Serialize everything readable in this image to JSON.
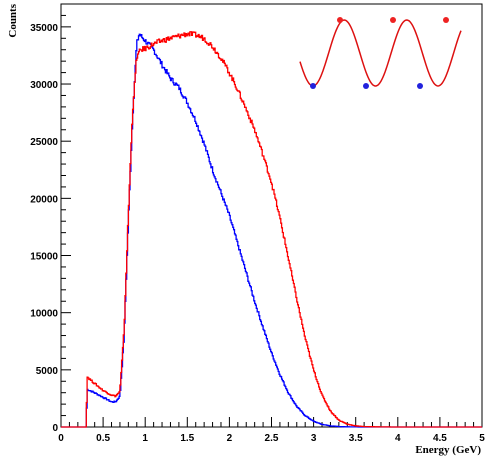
{
  "chart_data": {
    "type": "line",
    "xlabel": "Energy (GeV)",
    "ylabel": "Counts",
    "xlim": [
      0,
      5
    ],
    "ylim": [
      0,
      37000
    ],
    "x_ticks": [
      0,
      0.5,
      1,
      1.5,
      2,
      2.5,
      3,
      3.5,
      4,
      4.5,
      5
    ],
    "x_tick_labels": [
      "0",
      "0.5",
      "1",
      "1.5",
      "2",
      "2.5",
      "3",
      "3.5",
      "4",
      "4.5",
      "5"
    ],
    "y_ticks": [
      0,
      5000,
      10000,
      15000,
      20000,
      25000,
      30000,
      35000
    ],
    "y_tick_labels": [
      "0",
      "5000",
      "10000",
      "15000",
      "20000",
      "25000",
      "30000",
      "35000"
    ],
    "grid": false,
    "series": [
      {
        "color": "#0000ff",
        "x": [
          0.0,
          0.3,
          0.31,
          0.4,
          0.5,
          0.6,
          0.65,
          0.7,
          0.75,
          0.8,
          0.85,
          0.9,
          0.93,
          0.95,
          1.0,
          1.1,
          1.2,
          1.3,
          1.4,
          1.5,
          1.6,
          1.7,
          1.8,
          1.9,
          2.0,
          2.1,
          2.2,
          2.3,
          2.4,
          2.5,
          2.6,
          2.7,
          2.8,
          2.9,
          3.0,
          3.1,
          3.2,
          3.3,
          3.4,
          3.5,
          3.7,
          4.0,
          4.5,
          5.0
        ],
        "y": [
          0,
          0,
          3300,
          3000,
          2600,
          2200,
          2200,
          2700,
          8000,
          18000,
          27000,
          33500,
          34400,
          34200,
          33800,
          33000,
          31700,
          30500,
          29700,
          28400,
          26800,
          24800,
          22500,
          20500,
          18500,
          16000,
          13500,
          11000,
          8700,
          6500,
          4600,
          3000,
          1800,
          1000,
          500,
          230,
          100,
          40,
          15,
          5,
          0,
          0,
          0,
          0
        ]
      },
      {
        "color": "#ff0000",
        "x": [
          0.0,
          0.3,
          0.31,
          0.4,
          0.5,
          0.6,
          0.65,
          0.7,
          0.75,
          0.8,
          0.85,
          0.9,
          0.95,
          1.0,
          1.1,
          1.2,
          1.3,
          1.4,
          1.5,
          1.6,
          1.7,
          1.8,
          1.9,
          2.0,
          2.1,
          2.2,
          2.3,
          2.4,
          2.5,
          2.6,
          2.7,
          2.8,
          2.9,
          3.0,
          3.1,
          3.2,
          3.3,
          3.4,
          3.5,
          3.6,
          3.8,
          4.0,
          4.5,
          5.0
        ],
        "y": [
          0,
          0,
          4400,
          3800,
          3200,
          2800,
          2700,
          3100,
          8500,
          18500,
          27500,
          32400,
          33000,
          33100,
          33500,
          33800,
          34000,
          34200,
          34400,
          34300,
          34000,
          33300,
          32300,
          31000,
          29500,
          27800,
          26000,
          23800,
          21400,
          18300,
          14800,
          11200,
          7800,
          5000,
          2800,
          1400,
          600,
          250,
          100,
          40,
          10,
          0,
          0,
          0
        ]
      }
    ]
  }
}
